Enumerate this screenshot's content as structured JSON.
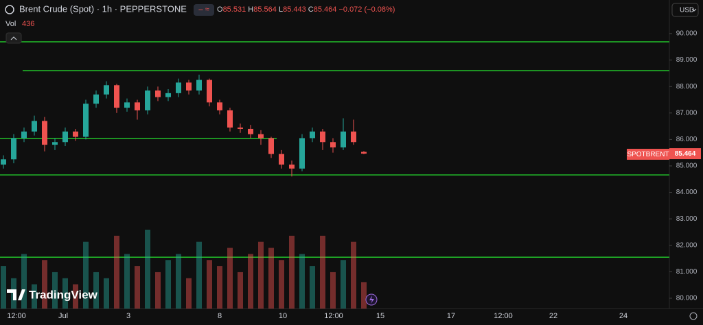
{
  "chart_data": {
    "type": "candlestick",
    "title": "Brent Crude (Spot) · 1h · PEPPERSTONE",
    "ohlc_letters": [
      "O",
      "H",
      "L",
      "C"
    ],
    "change": "−0.072 (−0.08%)",
    "volume_label": "Vol",
    "currency": "USD",
    "symbol_tag": "SPOTBRENT",
    "brand": "TradingView",
    "up_color": "#26a69a",
    "down_color": "#ef5350",
    "level_color": "#22c02a",
    "open": [
      85.05,
      85.25,
      86.05,
      86.3,
      86.7,
      85.8,
      85.9,
      86.3,
      86.1,
      87.35,
      87.7,
      88.05,
      87.2,
      87.4,
      87.1,
      87.85,
      87.6,
      87.75,
      88.15,
      87.85,
      88.25,
      87.4,
      87.1,
      86.45,
      86.4,
      86.2,
      86.05,
      85.45,
      85.05,
      84.9,
      86.05,
      86.3,
      85.9,
      85.7,
      86.3,
      85.531
    ],
    "high": [
      85.4,
      86.2,
      86.45,
      86.9,
      86.85,
      86.05,
      86.45,
      86.4,
      87.5,
      87.85,
      88.2,
      88.1,
      87.55,
      87.5,
      88.0,
      88.0,
      87.9,
      88.3,
      88.25,
      88.45,
      88.3,
      87.5,
      87.2,
      86.6,
      86.55,
      86.35,
      86.1,
      85.6,
      85.2,
      86.2,
      86.45,
      86.4,
      86.05,
      86.8,
      86.75,
      85.564
    ],
    "low": [
      84.9,
      85.1,
      85.9,
      86.15,
      85.55,
      85.6,
      85.75,
      85.95,
      86.0,
      87.2,
      87.55,
      87.0,
      87.05,
      86.75,
      86.95,
      87.45,
      87.45,
      87.6,
      87.7,
      87.7,
      87.25,
      86.95,
      86.3,
      86.25,
      86.05,
      85.8,
      85.3,
      84.9,
      84.6,
      84.8,
      85.9,
      85.6,
      85.5,
      85.6,
      85.8,
      85.443
    ],
    "close": [
      85.25,
      86.05,
      86.3,
      86.7,
      85.8,
      85.9,
      86.3,
      86.1,
      87.35,
      87.7,
      88.05,
      87.2,
      87.4,
      87.1,
      87.85,
      87.6,
      87.75,
      88.15,
      87.85,
      88.25,
      87.4,
      87.1,
      86.45,
      86.4,
      86.2,
      86.05,
      85.45,
      85.05,
      84.9,
      86.05,
      86.3,
      85.9,
      85.7,
      86.3,
      85.9,
      85.464
    ],
    "volume": [
      700,
      500,
      900,
      400,
      800,
      600,
      500,
      400,
      1100,
      600,
      500,
      1200,
      900,
      700,
      1300,
      600,
      800,
      900,
      500,
      1100,
      800,
      700,
      1000,
      600,
      900,
      1100,
      1000,
      800,
      1200,
      900,
      700,
      1200,
      600,
      800,
      1100,
      436
    ],
    "levels": [
      89.69,
      88.6,
      86.04,
      84.66,
      81.55
    ],
    "ylim": [
      79.61,
      91.27
    ],
    "yticks": [
      {
        "value": 90,
        "label": "90.000"
      },
      {
        "value": 89,
        "label": "89.000"
      },
      {
        "value": 88,
        "label": "88.000"
      },
      {
        "value": 87,
        "label": "87.000"
      },
      {
        "value": 86,
        "label": "86.000"
      },
      {
        "value": 85,
        "label": "85.000"
      },
      {
        "value": 84,
        "label": "84.000"
      },
      {
        "value": 83,
        "label": "83.000"
      },
      {
        "value": 82,
        "label": "82.000"
      },
      {
        "value": 81,
        "label": "81.000"
      },
      {
        "value": 80,
        "label": "80.000"
      }
    ],
    "xticks": [
      "12:00",
      "Jul",
      "3",
      "8",
      "10",
      "12:00",
      "15",
      "17",
      "12:00",
      "22",
      "24"
    ]
  }
}
